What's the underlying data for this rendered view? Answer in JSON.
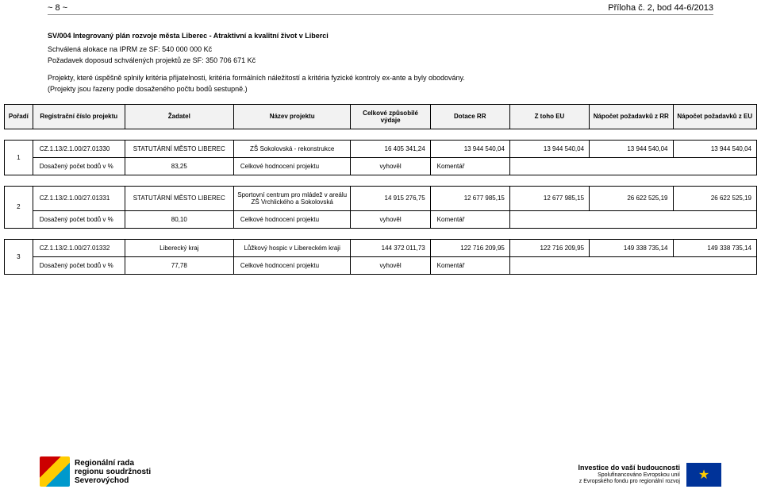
{
  "header": {
    "left": "~ 8 ~",
    "right": "Příloha č. 2, bod 44-6/2013"
  },
  "intro": {
    "title": "SV/004 Integrovaný plán rozvoje města Liberec - Atraktivní a kvalitní život v Liberci",
    "line1": "Schválená alokace na IPRM ze SF: 540 000 000 Kč",
    "line2": "Požadavek doposud schválených projektů ze SF: 350 706 671 Kč",
    "line3": "Projekty, které úspěšně splnily kritéria přijatelnosti, kritéria formálních náležitostí a kritéria fyzické kontroly ex-ante a byly obodovány.",
    "line4": "(Projekty jsou řazeny podle dosaženého počtu bodů sestupně.)"
  },
  "columns": {
    "poradi": "Pořadí",
    "reg": "Registrační číslo projektu",
    "zadatel": "Žadatel",
    "nazev": "Název projektu",
    "vydaje": "Celkové způsobilé výdaje",
    "dotace": "Dotace RR",
    "ztoho": "Z toho EU",
    "napocetRR": "Nápočet požadavků z RR",
    "napocetEU": "Nápočet požadavků z EU"
  },
  "labels": {
    "dosazeny": "Dosažený počet bodů v %",
    "hodnoceni": "Celkové hodnocení projektu",
    "vyhovel": "vyhověl",
    "komentar": "Komentář"
  },
  "rows": [
    {
      "poradi": "1",
      "reg": "CZ.1.13/2.1.00/27.01330",
      "zadatel": "STATUTÁRNÍ MĚSTO LIBEREC",
      "nazev": "ZŠ Sokolovská - rekonstrukce",
      "vydaje": "16 405 341,24",
      "dotace": "13 944 540,04",
      "ztoho": "13 944 540,04",
      "napRR": "13 944 540,04",
      "napEU": "13 944 540,04",
      "body": "83,25"
    },
    {
      "poradi": "2",
      "reg": "CZ.1.13/2.1.00/27.01331",
      "zadatel": "STATUTÁRNÍ MĚSTO LIBEREC",
      "nazev": "Sportovní centrum pro mládež v areálu ZŠ Vrchlického a Sokolovská",
      "vydaje": "14 915 276,75",
      "dotace": "12 677 985,15",
      "ztoho": "12 677 985,15",
      "napRR": "26 622 525,19",
      "napEU": "26 622 525,19",
      "body": "80,10"
    },
    {
      "poradi": "3",
      "reg": "CZ.1.13/2.1.00/27.01332",
      "zadatel": "Liberecký kraj",
      "nazev": "Lůžkový hospic v Libereckém kraji",
      "vydaje": "144 372 011,73",
      "dotace": "122 716 209,95",
      "ztoho": "122 716 209,95",
      "napRR": "149 338 735,14",
      "napEU": "149 338 735,14",
      "body": "77,78"
    }
  ],
  "footer": {
    "leftLogo1": "Regionální rada",
    "leftLogo2": "regionu soudržnosti",
    "leftLogo3": "Severovýchod",
    "right1": "Investice do vaší budoucnosti",
    "right2": "Spolufinancováno Evropskou unií",
    "right3": "z Evropského fondu pro regionální rozvoj"
  }
}
